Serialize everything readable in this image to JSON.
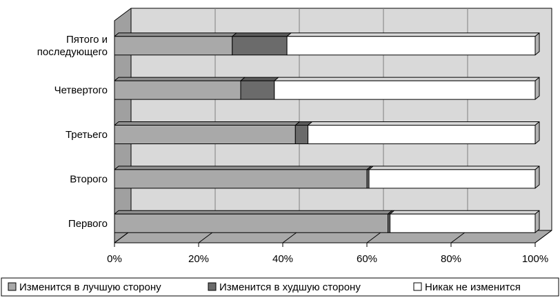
{
  "chart_data": {
    "type": "bar",
    "orientation": "horizontal",
    "stacked": "percent",
    "style": "3d",
    "categories": [
      [
        "Пятого и",
        "последующего"
      ],
      [
        "Четвертого"
      ],
      [
        "Третьего"
      ],
      [
        "Второго"
      ],
      [
        "Первого"
      ]
    ],
    "series": [
      {
        "name": "Изменится в лучшую сторону",
        "values": [
          28,
          30,
          43,
          60,
          65
        ],
        "color": "#a9a9a9"
      },
      {
        "name": "Изменится в худшую сторону",
        "values": [
          13,
          8,
          3,
          0.5,
          0.5
        ],
        "color": "#6b6b6b"
      },
      {
        "name": "Никак не изменится",
        "values": [
          59,
          62,
          54,
          39.5,
          34.5
        ],
        "color": "#ffffff"
      }
    ],
    "x_ticks": [
      "0%",
      "20%",
      "40%",
      "60%",
      "80%",
      "100%"
    ],
    "xlim": [
      0,
      100
    ],
    "grid": true,
    "legend_position": "bottom",
    "colors": {
      "wall": "#d9d9d9",
      "floor": "#a9a9a9",
      "side_wall": "#a0a0a0",
      "grid": "#808080"
    }
  }
}
